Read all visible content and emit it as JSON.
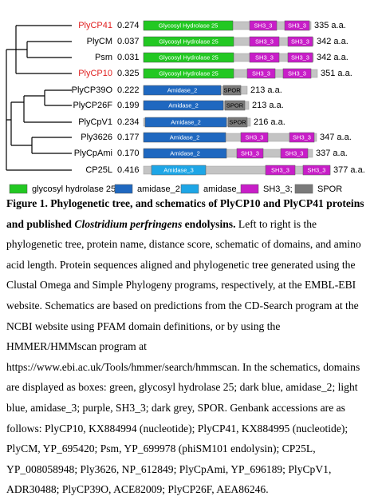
{
  "figure": {
    "rows": [
      {
        "name": "PlyCP41",
        "color": "#e02020",
        "distance": "0.274",
        "length": "335 a.a.",
        "domains": [
          {
            "label": "Glycosyl Hydrolase 25",
            "color": "#22c822"
          },
          {
            "label": "SH3_3",
            "color": "#c81ec8"
          },
          {
            "label": "SH3_3",
            "color": "#c81ec8"
          }
        ]
      },
      {
        "name": "PlyCM",
        "color": "#000000",
        "distance": "0.037",
        "length": "342 a.a.",
        "domains": [
          {
            "label": "Glycosyl Hydrolase 25",
            "color": "#22c822"
          },
          {
            "label": "SH3_3",
            "color": "#c81ec8"
          },
          {
            "label": "SH3_3",
            "color": "#c81ec8"
          }
        ]
      },
      {
        "name": "Psm",
        "color": "#000000",
        "distance": "0.031",
        "length": "342 a.a.",
        "domains": [
          {
            "label": "Glycosyl Hydrolase 25",
            "color": "#22c822"
          },
          {
            "label": "SH3_3",
            "color": "#c81ec8"
          },
          {
            "label": "SH3_3",
            "color": "#c81ec8"
          }
        ]
      },
      {
        "name": "PlyCP10",
        "color": "#e02020",
        "distance": "0.325",
        "length": "351 a.a.",
        "domains": [
          {
            "label": "Glycosyl Hydrolase 25",
            "color": "#22c822"
          },
          {
            "label": "SH3_3",
            "color": "#c81ec8"
          },
          {
            "label": "SH3_3",
            "color": "#c81ec8"
          }
        ]
      },
      {
        "name": "PlyCP39O",
        "color": "#000000",
        "distance": "0.222",
        "length": "213 a.a.",
        "domains": [
          {
            "label": "Amidase_2",
            "color": "#1f68c0"
          },
          {
            "label": "SPOR",
            "color": "#7a7a7a"
          }
        ]
      },
      {
        "name": "PlyCP26F",
        "color": "#000000",
        "distance": "0.199",
        "length": "213 a.a.",
        "domains": [
          {
            "label": "Amidase_2",
            "color": "#1f68c0"
          },
          {
            "label": "SPOR",
            "color": "#7a7a7a"
          }
        ]
      },
      {
        "name": "PlyCpV1",
        "color": "#000000",
        "distance": "0.234",
        "length": "216 a.a.",
        "domains": [
          {
            "label": "Amidase_2",
            "color": "#1f68c0"
          },
          {
            "label": "SPOR",
            "color": "#7a7a7a"
          }
        ]
      },
      {
        "name": "Ply3626",
        "color": "#000000",
        "distance": "0.177",
        "length": "347 a.a.",
        "domains": [
          {
            "label": "Amidase_2",
            "color": "#1f68c0"
          },
          {
            "label": "SH3_3",
            "color": "#c81ec8"
          },
          {
            "label": "SH3_3",
            "color": "#c81ec8"
          }
        ]
      },
      {
        "name": "PlyCpAmi",
        "color": "#000000",
        "distance": "0.170",
        "length": "337 a.a.",
        "domains": [
          {
            "label": "Amidase_2",
            "color": "#1f68c0"
          },
          {
            "label": "SH3_3",
            "color": "#c81ec8"
          },
          {
            "label": "SH3_3",
            "color": "#c81ec8"
          }
        ]
      },
      {
        "name": "CP25L",
        "color": "#000000",
        "distance": "0.416",
        "length": "377 a.a.",
        "domains": [
          {
            "label": "Amidase_3",
            "color": "#1ea6e6"
          },
          {
            "label": "SH3_3",
            "color": "#c81ec8"
          },
          {
            "label": "SH3_3",
            "color": "#c81ec8"
          }
        ]
      }
    ],
    "legend": [
      {
        "label": "glycosyl hydrolase 25;",
        "color": "#22c822"
      },
      {
        "label": "amidase_2;",
        "color": "#1f68c0"
      },
      {
        "label": "amidase_3;",
        "color": "#1ea6e6"
      },
      {
        "label": "SH3_3;",
        "color": "#c81ec8"
      },
      {
        "label": "SPOR",
        "color": "#7a7a7a"
      }
    ]
  },
  "caption": {
    "title_start": "Figure 1. Phylogenetic tree, and schematics of PlyCP10 and PlyCP41 proteins and published ",
    "title_italic": "Clostridium perfringens",
    "title_end": " endolysins.",
    "body": " Left to right is the phylogenetic tree, protein name, distance score, schematic of domains, and amino acid length. Protein sequences aligned and phylogenetic tree generated using the Clustal Omega and Simple Phylogeny programs, respectively, at the EMBL-EBI website. Schematics are based on predictions from the CD-Search program at the NCBI website using PFAM domain definitions, or by using the HMMER/HMMscan program at https://www.ebi.ac.uk/Tools/hmmer/search/hmmscan. In the schematics, domains are displayed as boxes: green, glycosyl hydrolase 25; dark blue, amidase_2; light blue, amidase_3; purple, SH3_3; dark grey, SPOR. Genbank accessions are as follows: PlyCP10, KX884994 (nucleotide); PlyCP41, KX884995 (nucleotide); PlyCM, YP_695420; Psm, YP_699978 (phiSM101 endolysin); CP25L, YP_008058948; Ply3626, NP_612849; PlyCpAmi, YP_696189; PlyCpV1, ADR30488; PlyCP39O, ACE82009; PlyCP26F, AEA86246."
  }
}
